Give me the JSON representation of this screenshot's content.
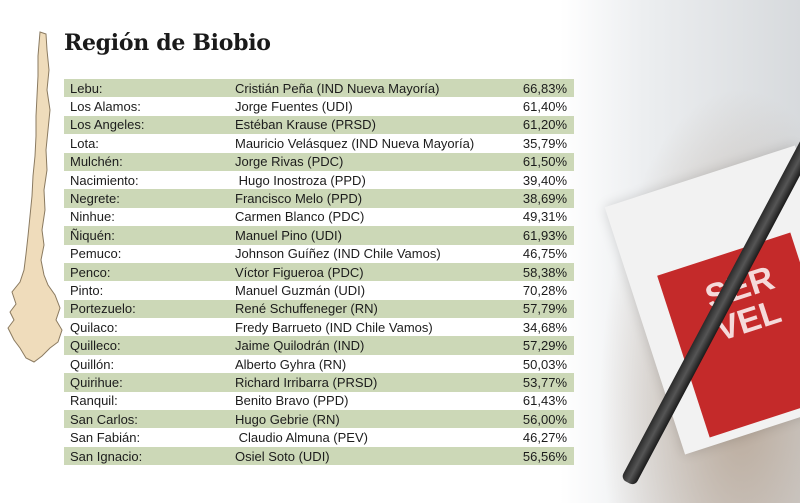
{
  "title": "Región de Biobio",
  "rows": [
    {
      "commune": "Lebu:",
      "candidate": "Cristián Peña (IND Nueva Mayoría)",
      "percent": "66,83%"
    },
    {
      "commune": "Los Alamos:",
      "candidate": "Jorge Fuentes (UDI)",
      "percent": "61,40%"
    },
    {
      "commune": "Los Angeles:",
      "candidate": "Estéban Krause (PRSD)",
      "percent": "61,20%"
    },
    {
      "commune": "Lota:",
      "candidate": "Mauricio Velásquez (IND Nueva Mayoría)",
      "percent": "35,79%"
    },
    {
      "commune": "Mulchén:",
      "candidate": "Jorge Rivas (PDC)",
      "percent": "61,50%"
    },
    {
      "commune": "Nacimiento:",
      "candidate": " Hugo Inostroza (PPD)",
      "percent": "39,40%"
    },
    {
      "commune": "Negrete:",
      "candidate": "Francisco Melo (PPD)",
      "percent": "38,69%"
    },
    {
      "commune": "Ninhue:",
      "candidate": "Carmen Blanco (PDC)",
      "percent": "49,31%"
    },
    {
      "commune": "Ñiquén:",
      "candidate": "Manuel Pino (UDI)",
      "percent": "61,93%"
    },
    {
      "commune": "Pemuco:",
      "candidate": "Johnson Guíñez (IND Chile Vamos)",
      "percent": "46,75%"
    },
    {
      "commune": "Penco:",
      "candidate": "Víctor Figueroa (PDC)",
      "percent": "58,38%"
    },
    {
      "commune": "Pinto:",
      "candidate": "Manuel Guzmán (UDI)",
      "percent": "70,28%"
    },
    {
      "commune": "Portezuelo:",
      "candidate": "René Schuffeneger (RN)",
      "percent": "57,79%"
    },
    {
      "commune": "Quilaco:",
      "candidate": "Fredy Barrueto (IND Chile Vamos)",
      "percent": "34,68%"
    },
    {
      "commune": "Quilleco:",
      "candidate": "Jaime Quilodrán (IND)",
      "percent": "57,29%"
    },
    {
      "commune": "Quillón:",
      "candidate": "Alberto Gyhra (RN)",
      "percent": "50,03%"
    },
    {
      "commune": "Quirihue:",
      "candidate": "Richard Irribarra (PRSD)",
      "percent": "53,77%"
    },
    {
      "commune": "Ranquil:",
      "candidate": "Benito Bravo (PPD)",
      "percent": "61,43%"
    },
    {
      "commune": "San Carlos:",
      "candidate": "Hugo Gebrie (RN)",
      "percent": "56,00%"
    },
    {
      "commune": "San Fabián:",
      "candidate": " Claudio Almuna (PEV)",
      "percent": "46,27%"
    },
    {
      "commune": "San Ignacio:",
      "candidate": "Osiel Soto (UDI)",
      "percent": "56,56%"
    }
  ],
  "photo_text": "SER\nVEL",
  "colors": {
    "row_shade": "#ccd8b7",
    "map_fill": "#efdcbb",
    "map_stroke": "#8a7a60",
    "title": "#1a1a1a"
  }
}
